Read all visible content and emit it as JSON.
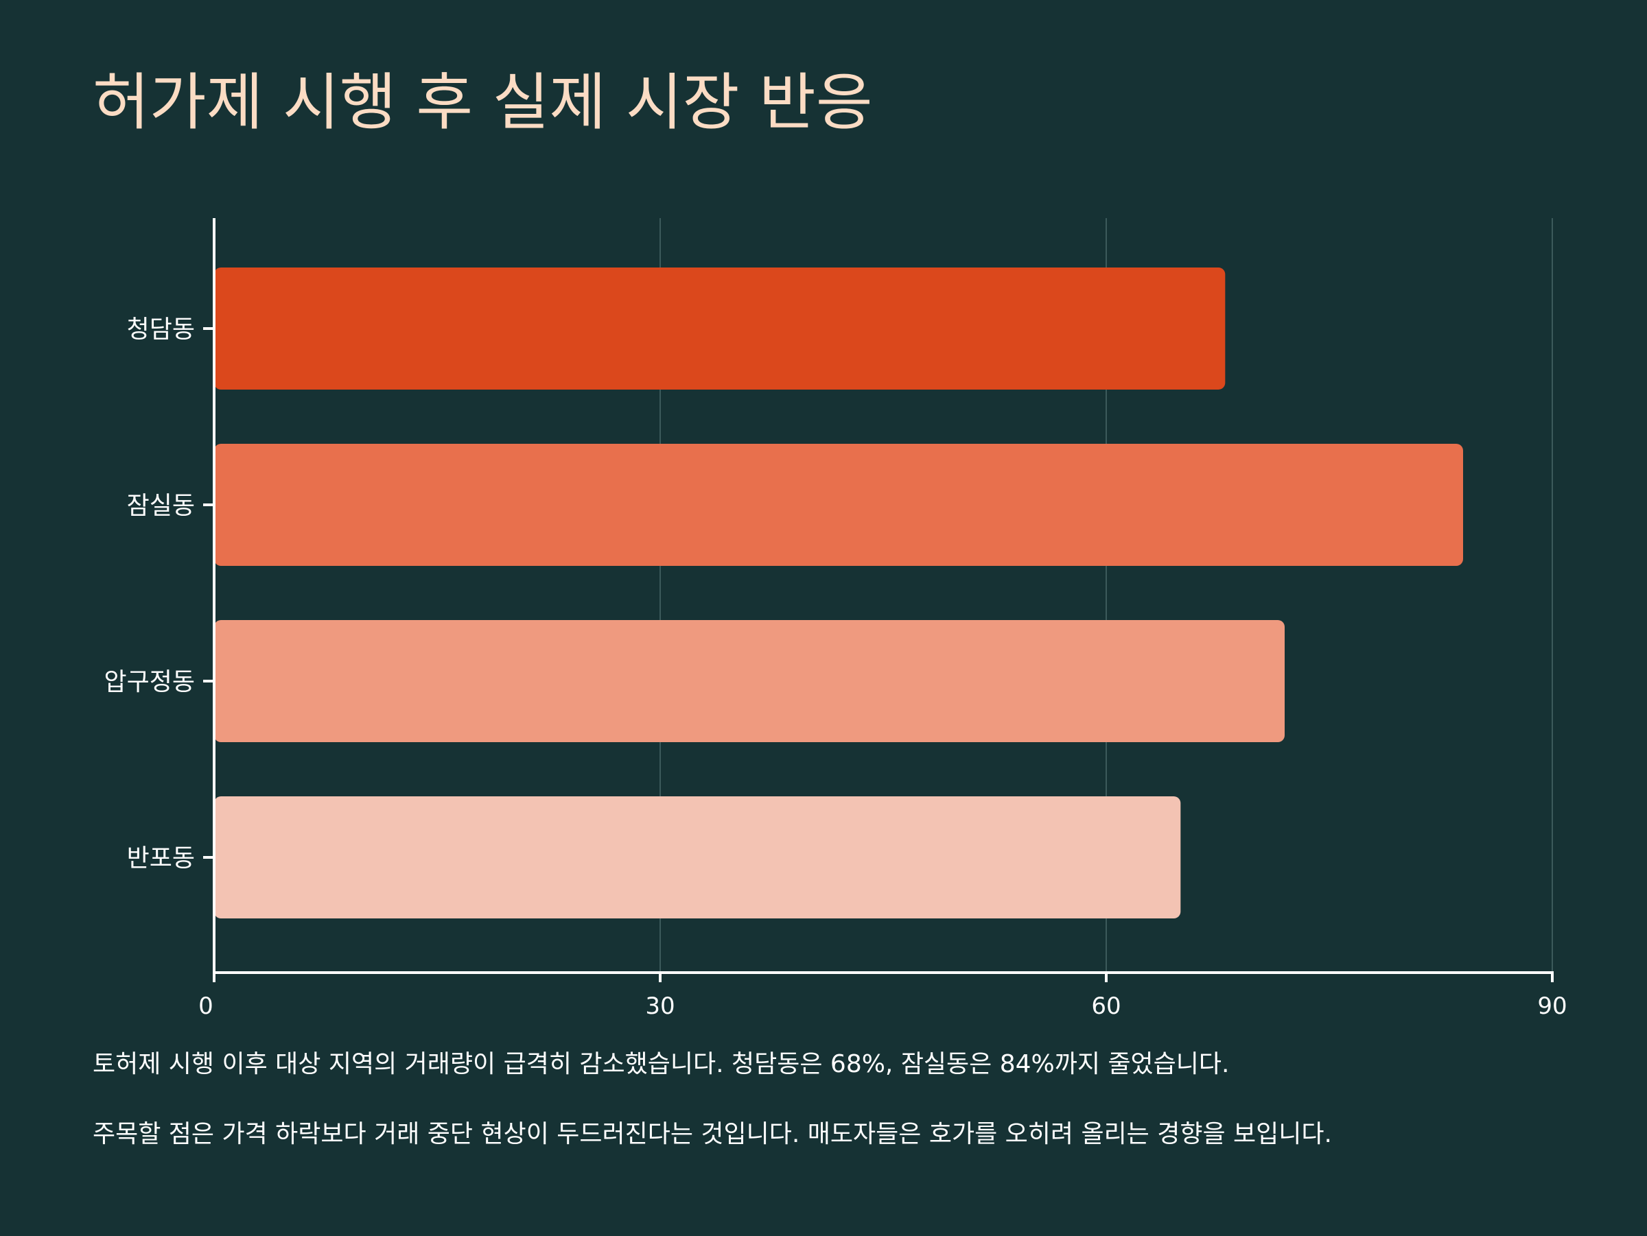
{
  "title": "허가제 시행 후 실제 시장 반응",
  "colors": {
    "background": "#163234",
    "title": "#fbdcc4",
    "axis": "#ffffff",
    "grid": "#3c5a5b",
    "bars": [
      "#db481c",
      "#e8704d",
      "#ef9a7f",
      "#f3c3b3"
    ]
  },
  "chart_data": {
    "type": "bar",
    "orientation": "horizontal",
    "title": "",
    "xlabel": "",
    "ylabel": "",
    "categories": [
      "청담동",
      "잠실동",
      "압구정동",
      "반포동"
    ],
    "values": [
      68,
      84,
      72,
      65
    ],
    "xlim": [
      0,
      90
    ],
    "xticks": [
      0,
      30,
      60,
      90
    ],
    "grid": true,
    "legend": "none"
  },
  "notes": [
    "토허제 시행 이후 대상 지역의 거래량이 급격히 감소했습니다. 청담동은 68%, 잠실동은 84%까지 줄었습니다.",
    "주목할 점은 가격 하락보다 거래 중단 현상이 두드러진다는 것입니다. 매도자들은 호가를 오히려 올리는 경향을 보입니다."
  ]
}
